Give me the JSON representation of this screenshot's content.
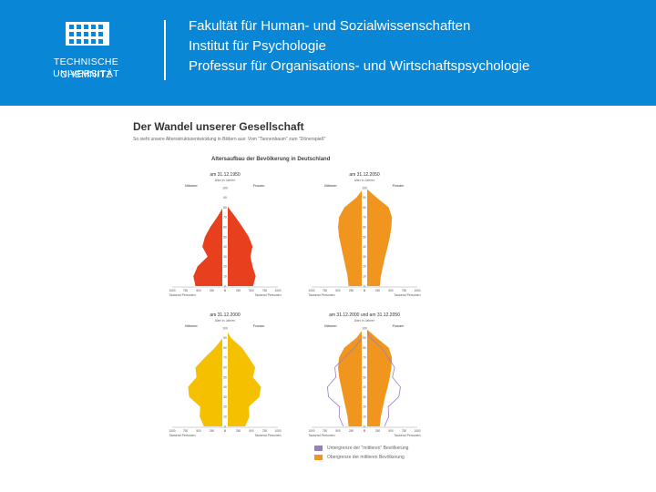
{
  "header": {
    "logo_line1": "TECHNISCHE UNIVERSITÄT",
    "logo_line2": "CHEMNITZ",
    "lines": [
      "Fakultät für Human- und Sozialwissenschaften",
      "Institut für Psychologie",
      "Professur für Organisations- und Wirtschaftspsychologie"
    ]
  },
  "figure": {
    "title": "Der Wandel unserer Gesellschaft",
    "subtitle": "So sieht unsere Altersstrukturentwicklung in Bildern aus: Vom \"Tannenbaum\" zum \"Dönerspieß\"",
    "chart_heading": "Altersaufbau der Bevölkerung in Deutschland"
  },
  "colors": {
    "header_bg": "#0a86d6",
    "red": "#e8401e",
    "orange": "#f0961e",
    "yellow": "#f5c000",
    "outline": "#9a7dc0"
  },
  "chart_data": [
    {
      "type": "population-pyramid",
      "date_label": "am 31.12.1950",
      "age_label": "Alter in Jahren",
      "left_label": "Männer",
      "right_label": "Frauen",
      "x_label": "Tausend Personen",
      "x_ticks": [
        "1000",
        "750",
        "500",
        "250",
        "0",
        "0",
        "250",
        "500",
        "750",
        "1000"
      ],
      "age_ticks": [
        0,
        10,
        20,
        30,
        40,
        50,
        60,
        70,
        80,
        90,
        100
      ],
      "xlim": [
        0,
        1000
      ],
      "color": "#e8401e",
      "ages": [
        0,
        10,
        20,
        30,
        40,
        50,
        60,
        70,
        80,
        90,
        100
      ],
      "male": [
        560,
        600,
        520,
        330,
        430,
        380,
        280,
        150,
        40,
        3,
        0
      ],
      "female": [
        530,
        580,
        520,
        480,
        520,
        450,
        330,
        200,
        60,
        5,
        0
      ]
    },
    {
      "type": "population-pyramid",
      "date_label": "am 31.12.2050",
      "age_label": "Alter in Jahren",
      "left_label": "Männer",
      "right_label": "Frauen",
      "x_label": "Tausend Personen",
      "x_ticks": [
        "1000",
        "750",
        "500",
        "250",
        "0",
        "0",
        "250",
        "500",
        "750",
        "1000"
      ],
      "age_ticks": [
        0,
        10,
        20,
        30,
        40,
        50,
        60,
        70,
        80,
        90,
        100
      ],
      "xlim": [
        0,
        1000
      ],
      "color": "#f0961e",
      "ages": [
        0,
        10,
        20,
        30,
        40,
        50,
        60,
        70,
        80,
        90,
        100
      ],
      "male": [
        300,
        320,
        360,
        400,
        440,
        480,
        500,
        480,
        380,
        150,
        10
      ],
      "female": [
        290,
        310,
        350,
        390,
        440,
        480,
        510,
        520,
        460,
        230,
        20
      ]
    },
    {
      "type": "population-pyramid",
      "date_label": "am 31.12.2000",
      "age_label": "Alter in Jahren",
      "left_label": "Männer",
      "right_label": "Frauen",
      "x_label": "Tausend Personen",
      "x_ticks": [
        "1000",
        "750",
        "500",
        "250",
        "0",
        "0",
        "250",
        "500",
        "750",
        "1000"
      ],
      "age_ticks": [
        0,
        10,
        20,
        30,
        40,
        50,
        60,
        70,
        80,
        90,
        100
      ],
      "xlim": [
        0,
        1000
      ],
      "color": "#f5c000",
      "ages": [
        0,
        10,
        20,
        30,
        40,
        50,
        60,
        70,
        80,
        90,
        100
      ],
      "male": [
        400,
        480,
        470,
        680,
        700,
        540,
        560,
        380,
        190,
        40,
        0
      ],
      "female": [
        380,
        460,
        450,
        650,
        680,
        530,
        570,
        450,
        320,
        110,
        5
      ]
    },
    {
      "type": "population-pyramid",
      "date_label": "am 31.12.2000 und am 31.12.2050",
      "age_label": "Alter in Jahren",
      "left_label": "Männer",
      "right_label": "Frauen",
      "x_label": "Tausend Personen",
      "x_ticks": [
        "1000",
        "750",
        "500",
        "250",
        "0",
        "0",
        "250",
        "500",
        "750",
        "1000"
      ],
      "age_ticks": [
        0,
        10,
        20,
        30,
        40,
        50,
        60,
        70,
        80,
        90,
        100
      ],
      "xlim": [
        0,
        1000
      ],
      "color": "#f0961e",
      "outline_color": "#9a7dc0",
      "ages": [
        0,
        10,
        20,
        30,
        40,
        50,
        60,
        70,
        80,
        90,
        100
      ],
      "male": [
        300,
        320,
        360,
        400,
        440,
        480,
        500,
        480,
        380,
        150,
        10
      ],
      "female": [
        290,
        310,
        350,
        390,
        440,
        480,
        510,
        520,
        460,
        230,
        20
      ],
      "outline_male": [
        400,
        480,
        470,
        680,
        700,
        540,
        560,
        380,
        190,
        40,
        0
      ],
      "outline_female": [
        380,
        460,
        450,
        650,
        680,
        530,
        570,
        450,
        320,
        110,
        5
      ]
    }
  ],
  "legend": [
    {
      "label": "Untergrenze der \"mittleren\" Bevölkerung",
      "color": "#9a7dc0"
    },
    {
      "label": "Obergrenze der mittleren Bevölkerung",
      "color": "#f0961e"
    }
  ]
}
